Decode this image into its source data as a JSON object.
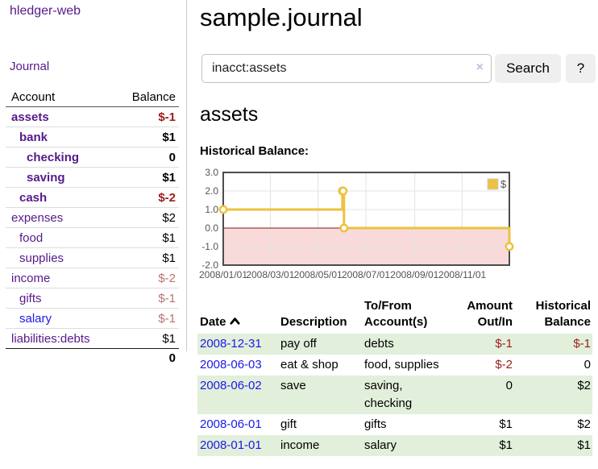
{
  "colors": {
    "link_purple": "#551a8b",
    "link_blue": "#1a1ae8",
    "negative_red": "#9d1c1c",
    "negative_muted": "#bb7171",
    "row_green": "#e2efdb",
    "series_gold": "#edc240",
    "negative_region_pink": "#f9dada",
    "zero_line_red": "#8b1414"
  },
  "app": {
    "brand": "hledger-web",
    "nav_journal": "Journal"
  },
  "sidebar": {
    "header": {
      "account": "Account",
      "balance": "Balance"
    },
    "accounts": [
      {
        "name": "assets",
        "depth": 0,
        "balance": "$-1",
        "bold": true,
        "balance_color": "#9d1c1c"
      },
      {
        "name": "bank",
        "depth": 1,
        "balance": "$1",
        "bold": true,
        "balance_color": "#000000"
      },
      {
        "name": "checking",
        "depth": 2,
        "balance": "0",
        "bold": true,
        "balance_color": "#000000"
      },
      {
        "name": "saving",
        "depth": 2,
        "balance": "$1",
        "bold": true,
        "balance_color": "#000000"
      },
      {
        "name": "cash",
        "depth": 1,
        "balance": "$-2",
        "bold": true,
        "balance_color": "#9d1c1c"
      },
      {
        "name": "expenses",
        "depth": 0,
        "balance": "$2",
        "bold": false,
        "balance_color": "#000000"
      },
      {
        "name": "food",
        "depth": 1,
        "balance": "$1",
        "bold": false,
        "balance_color": "#000000"
      },
      {
        "name": "supplies",
        "depth": 1,
        "balance": "$1",
        "bold": false,
        "balance_color": "#000000"
      },
      {
        "name": "income",
        "depth": 0,
        "balance": "$-2",
        "bold": false,
        "balance_color": "#bb7171"
      },
      {
        "name": "gifts",
        "depth": 1,
        "balance": "$-1",
        "bold": false,
        "balance_color": "#bb7171"
      },
      {
        "name": "salary",
        "depth": 1,
        "balance": "$-1",
        "bold": false,
        "balance_color": "#bb7171",
        "link_color": "#1a1ae8"
      },
      {
        "name": "liabilities:debts",
        "depth": 0,
        "balance": "$1",
        "bold": false,
        "balance_color": "#000000"
      }
    ],
    "total": "0"
  },
  "header": {
    "title": "sample.journal"
  },
  "search": {
    "value": "inacct:assets",
    "clear_icon": "×",
    "button_label": "Search",
    "help_label": "?"
  },
  "account_page": {
    "title": "assets",
    "chart_label": "Historical Balance:"
  },
  "chart_data": {
    "type": "line",
    "step": true,
    "title": "Historical Balance of assets",
    "xlim": [
      "2008-01-01",
      "2008-12-31"
    ],
    "ylim": [
      -2.0,
      3.0
    ],
    "y_ticks": [
      3.0,
      2.0,
      1.0,
      0.0,
      -1.0,
      -2.0
    ],
    "x_ticks": [
      "2008/01/01",
      "2008/03/01",
      "2008/05/01",
      "2008/07/01",
      "2008/09/01",
      "2008/11/01"
    ],
    "series": [
      {
        "name": "$",
        "color": "#edc240",
        "points": [
          [
            "2008-01-01",
            1
          ],
          [
            "2008-06-01",
            2
          ],
          [
            "2008-06-02",
            2
          ],
          [
            "2008-06-03",
            0
          ],
          [
            "2008-12-31",
            -1
          ]
        ]
      }
    ],
    "legend": {
      "label": "$",
      "position": "ne"
    },
    "grid": true,
    "negative_region": true
  },
  "register": {
    "columns": {
      "date": "Date",
      "description": "Description",
      "accounts": "To/From Account(s)",
      "amount": "Amount Out/In",
      "balance": "Historical Balance"
    },
    "rows": [
      {
        "date": "2008-12-31",
        "description": "pay off",
        "accounts": "debts",
        "amount": "$-1",
        "balance": "$-1",
        "shaded": true,
        "amount_color": "#9d1c1c",
        "balance_color": "#9d1c1c"
      },
      {
        "date": "2008-06-03",
        "description": "eat & shop",
        "accounts": "food, supplies",
        "amount": "$-2",
        "balance": "0",
        "shaded": false,
        "amount_color": "#9d1c1c",
        "balance_color": "#000000"
      },
      {
        "date": "2008-06-02",
        "description": "save",
        "accounts": "saving,\nchecking",
        "amount": "0",
        "balance": "$2",
        "shaded": true,
        "amount_color": "#000000",
        "balance_color": "#000000"
      },
      {
        "date": "2008-06-01",
        "description": "gift",
        "accounts": "gifts",
        "amount": "$1",
        "balance": "$2",
        "shaded": false,
        "amount_color": "#000000",
        "balance_color": "#000000"
      },
      {
        "date": "2008-01-01",
        "description": "income",
        "accounts": "salary",
        "amount": "$1",
        "balance": "$1",
        "shaded": true,
        "amount_color": "#000000",
        "balance_color": "#000000"
      }
    ]
  }
}
